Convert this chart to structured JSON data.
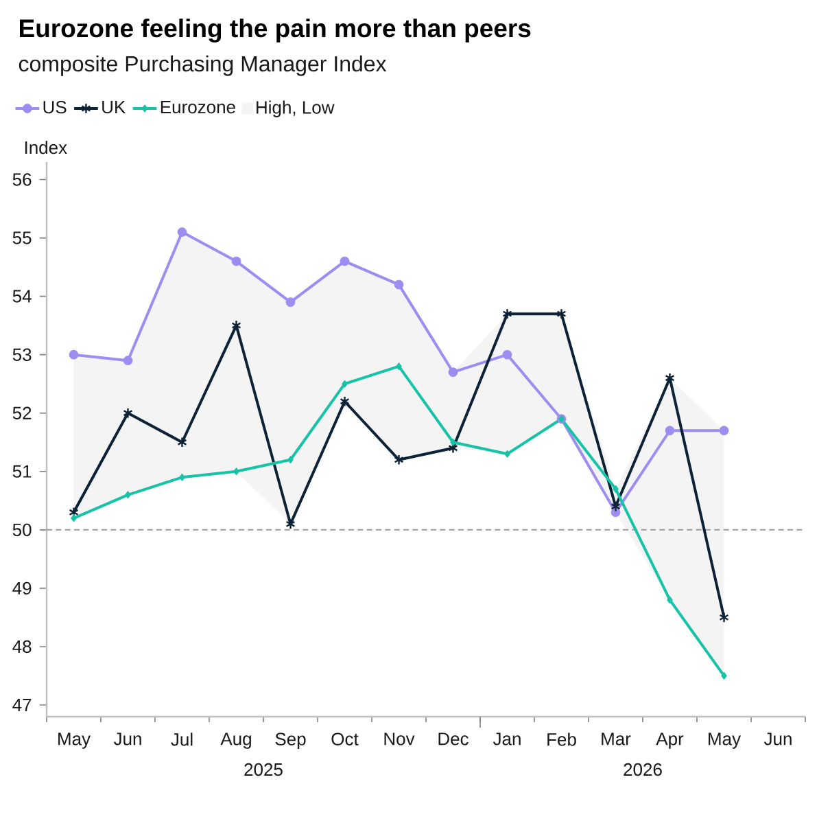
{
  "chart_data": {
    "type": "line",
    "title": "Eurozone feeling the pain more than peers",
    "subtitle": "composite Purchasing Manager Index",
    "ylabel": "Index",
    "categories": [
      "May",
      "Jun",
      "Jul",
      "Aug",
      "Sep",
      "Oct",
      "Nov",
      "Dec",
      "Jan",
      "Feb",
      "Mar",
      "Apr",
      "May",
      "Jun"
    ],
    "annotations": [
      "2025",
      "2026"
    ],
    "series": [
      {
        "name": "US",
        "color": "#9d8df1",
        "marker": "circle",
        "values": [
          53.0,
          52.9,
          55.1,
          54.6,
          53.9,
          54.6,
          54.2,
          52.7,
          53.0,
          51.9,
          50.3,
          51.7,
          51.7,
          null
        ]
      },
      {
        "name": "UK",
        "color": "#0d2236",
        "marker": "cross",
        "values": [
          50.3,
          52.0,
          51.5,
          53.5,
          50.1,
          52.2,
          51.2,
          51.4,
          53.7,
          53.7,
          50.4,
          52.6,
          48.5,
          null
        ]
      },
      {
        "name": "Eurozone",
        "color": "#17c3a6",
        "marker": "diamond",
        "values": [
          50.2,
          50.6,
          50.9,
          51.0,
          51.2,
          52.5,
          52.8,
          51.5,
          51.3,
          51.9,
          50.7,
          48.8,
          47.5,
          null
        ]
      },
      {
        "name": "High, Low",
        "type": "area",
        "color": "#f4f4f4",
        "values": [
          null,
          null,
          null,
          null,
          null,
          null,
          null,
          null,
          null,
          null,
          null,
          null,
          null,
          null
        ],
        "upper": [
          53.0,
          52.9,
          55.1,
          54.6,
          53.9,
          54.6,
          54.2,
          52.7,
          53.7,
          53.7,
          50.7,
          52.6,
          51.7,
          null
        ],
        "lower": [
          50.2,
          50.6,
          50.9,
          51.0,
          50.1,
          52.2,
          51.2,
          51.4,
          51.3,
          51.9,
          50.3,
          48.8,
          47.5,
          null
        ]
      }
    ],
    "ylim": [
      46.8,
      56.3
    ],
    "yticks": [
      47,
      48,
      49,
      50,
      51,
      52,
      53,
      54,
      55,
      56
    ],
    "ref_lines": [
      {
        "axis": "y",
        "value": 50,
        "color": "#9a9a9a",
        "line_style": "dashed"
      }
    ],
    "legend": "top left"
  }
}
